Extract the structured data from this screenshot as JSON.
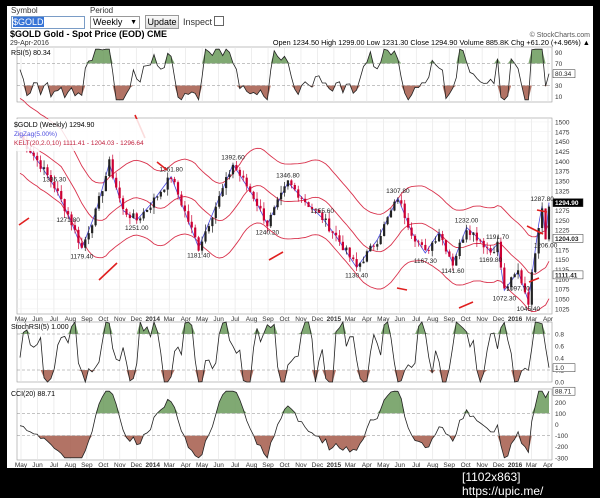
{
  "toolbar": {
    "symbol_label": "Symbol",
    "symbol_value": "$GOLD",
    "period_label": "Period",
    "period_value": "Weekly",
    "update_label": "Update",
    "inspect_label": "Inspect"
  },
  "header": {
    "title": "$GOLD Gold - Spot Price (EOD) CME",
    "date": "29-Apr-2016",
    "brand": "© StockCharts.com",
    "ohlc": "Open 1234.50  High 1299.00  Low 1231.30  Close 1294.90  Volume 885.8K  Chg +61.20 (+4.96%) ▲"
  },
  "panels": {
    "rsi": {
      "label": "RSI(5) 80.34",
      "value_tag": "80.34",
      "ticks": [
        "90",
        "70",
        "50",
        "30",
        "10"
      ]
    },
    "price": {
      "legend": [
        "$GOLD (Weekly) 1294.90",
        "ZigZag(5.00%)",
        "KELT(20,2.0,10) 1111.41 - 1204.03 - 1296.64"
      ],
      "ticks": [
        "1500",
        "1475",
        "1450",
        "1425",
        "1400",
        "1375",
        "1350",
        "1325",
        "1300",
        "1275",
        "1250",
        "1225",
        "1200",
        "1175",
        "1150",
        "1125",
        "1100",
        "1075",
        "1050",
        "1025"
      ],
      "price_tags": [
        "1294.90",
        "1204.03",
        "1111.41"
      ],
      "annotations": [
        "1336.30",
        "1271.80",
        "1179.40",
        "1361.80",
        "1251.00",
        "1181.40",
        "1392.60",
        "1346.80",
        "1240.20",
        "1255.60",
        "1130.40",
        "1307.80",
        "1167.30",
        "1141.60",
        "1232.00",
        "1169.80",
        "1072.30",
        "1191.70",
        "1097.70",
        "1045.40",
        "1287.80",
        "1206.00"
      ]
    },
    "stoch": {
      "label": "StochRSI(5) 1.000",
      "value_tag": "1.0",
      "ticks": [
        "0.8",
        "0.6",
        "0.4",
        "0.2",
        "0.0"
      ]
    },
    "cci": {
      "label": "CCI(20) 88.71",
      "value_tag": "88.71",
      "ticks": [
        "300",
        "200",
        "100",
        "0",
        "-100",
        "-200",
        "-300"
      ]
    }
  },
  "xaxis": [
    "May",
    "Jun",
    "Jul",
    "Aug",
    "Sep",
    "Oct",
    "Nov",
    "Dec",
    "2014",
    "Mar",
    "Apr",
    "May",
    "Jun",
    "Jul",
    "Aug",
    "Sep",
    "Oct",
    "Nov",
    "Dec",
    "2015",
    "Mar",
    "Apr",
    "May",
    "Jun",
    "Jul",
    "Aug",
    "Sep",
    "Oct",
    "Nov",
    "Dec",
    "2016",
    "Mar",
    "Apr"
  ],
  "watermark": "[1102x863] https://upic.me/",
  "colors": {
    "up": "#222222",
    "down": "#cc0033",
    "keltner": "#d9334d",
    "zigzag": "#4a4adf",
    "fill_green": "#6a9a5a",
    "fill_red": "#a55a4a",
    "arrow": "#e02020"
  }
}
